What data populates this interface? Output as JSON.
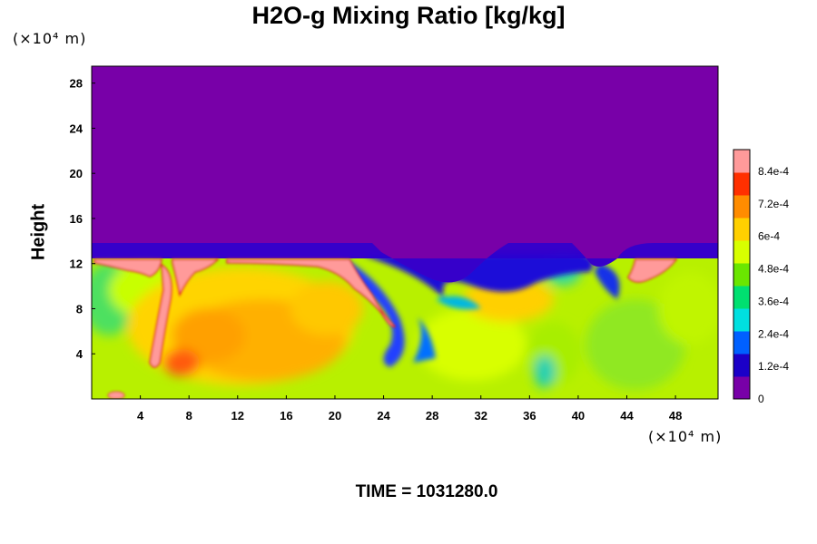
{
  "chart_data": {
    "type": "heatmap",
    "title": "H2O-g Mixing Ratio [kg/kg]",
    "ylabel": "Height",
    "x_unit": "(×10⁴ m)",
    "y_unit": "(×10⁴ m)",
    "time_label": "TIME = 1031280.0",
    "xlim": [
      0,
      51.5
    ],
    "ylim": [
      0,
      29.5
    ],
    "x_ticks": [
      4,
      8,
      12,
      16,
      20,
      24,
      28,
      32,
      36,
      40,
      44,
      48
    ],
    "y_ticks": [
      4,
      8,
      12,
      16,
      20,
      24,
      28
    ],
    "colorbar": {
      "range": [
        0,
        0.00092
      ],
      "tick_values": [
        0,
        0.00012,
        0.00024,
        0.00036,
        0.00048,
        0.0006,
        0.00072,
        0.00084
      ],
      "tick_labels": [
        "0",
        "1.2e-4",
        "2.4e-4",
        "3.6e-4",
        "4.8e-4",
        "6e-4",
        "7.2e-4",
        "8.4e-4"
      ],
      "colors": [
        "#7800a8",
        "#1b00c8",
        "#0060ff",
        "#00e0e0",
        "#00e070",
        "#6ae600",
        "#d8ff00",
        "#ffd000",
        "#ff8c00",
        "#ff3000",
        "#ff9a9a"
      ]
    },
    "fields": {
      "dry_layer_value": 0,
      "tropopause_height": 13.8,
      "moist_plumes": [
        {
          "x": 14,
          "y": 5,
          "value": 0.00068
        },
        {
          "x": 8,
          "y": 3.5,
          "value": 0.00076
        },
        {
          "x": 3,
          "y": 11.5,
          "value": 0.0009
        },
        {
          "x": 7,
          "y": 8,
          "value": 0.00088
        },
        {
          "x": 20,
          "y": 11,
          "value": 0.0009
        },
        {
          "x": 25,
          "y": 6,
          "value": 0.0001
        },
        {
          "x": 30,
          "y": 9,
          "value": 0.0003
        },
        {
          "x": 45,
          "y": 11.5,
          "value": 0.0009
        },
        {
          "x": 46,
          "y": 4,
          "value": 0.0005
        }
      ]
    }
  }
}
